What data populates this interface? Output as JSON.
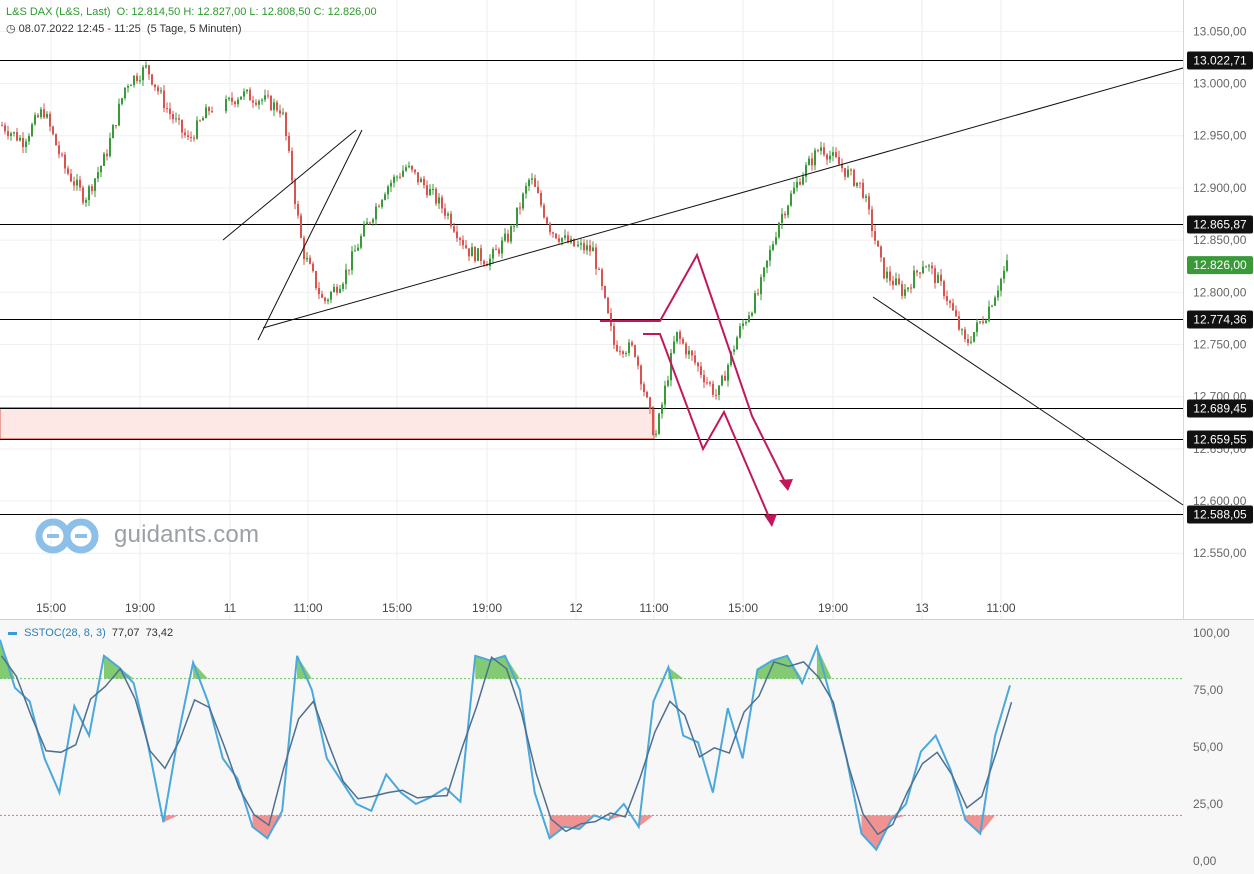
{
  "header": {
    "symbol": "L&S DAX (L&S, Last)",
    "ohlc": "O: 12.814,50   H: 12.827,00   L: 12.808,50   C: 12.826,00",
    "range": "08.07.2022 12:45 - 11:25",
    "interval": "(5 Tage, 5 Minuten)"
  },
  "logo": {
    "text": "guidants.com"
  },
  "colors": {
    "up": "#3a9a3a",
    "down": "#d9534f",
    "level_line": "#000000",
    "pattern": "#c2185b",
    "stoch": "#3a8fc5",
    "overbought_fill": "#6dc35b",
    "oversold_fill": "#f08080"
  },
  "chart_data": [
    {
      "type": "candlestick",
      "title": "L&S DAX (L&S, Last)",
      "ylim": [
        12510,
        13080
      ],
      "y_ticks": [
        "13.050,00",
        "13.000,00",
        "12.950,00",
        "12.900,00",
        "12.850,00",
        "12.800,00",
        "12.750,00",
        "12.700,00",
        "12.650,00",
        "12.600,00",
        "12.550,00"
      ],
      "x_tick_labels": [
        "15:00",
        "19:00",
        "11",
        "11:00",
        "15:00",
        "19:00",
        "12",
        "11:00",
        "15:00",
        "19:00",
        "13",
        "11:00"
      ],
      "last_price": {
        "value": 12826,
        "label": "12.826,00"
      },
      "horizontal_levels": [
        {
          "value": 13022.71,
          "label": "13.022,71"
        },
        {
          "value": 12865.87,
          "label": "12.865,87"
        },
        {
          "value": 12774.36,
          "label": "12.774,36"
        },
        {
          "value": 12689.45,
          "label": "12.689,45"
        },
        {
          "value": 12659.55,
          "label": "12.659,55"
        },
        {
          "value": 12588.05,
          "label": "12.588,05"
        }
      ],
      "zone": {
        "from": 12659.55,
        "to": 12689.45
      },
      "price_path": [
        [
          "15:00",
          12960
        ],
        [
          "15:00",
          12945
        ],
        [
          "15:00",
          12975
        ],
        [
          "15:00",
          12920
        ],
        [
          "15:00",
          12890
        ],
        [
          "19:00",
          12930
        ],
        [
          "19:00",
          13000
        ],
        [
          "19:00",
          13015
        ],
        [
          "19:00",
          12975
        ],
        [
          "19:00",
          12945
        ],
        [
          "19:00",
          12975
        ],
        [
          "19:00",
          12990
        ],
        [
          "19:00",
          12985
        ],
        [
          "19:00",
          12975
        ],
        [
          "11",
          12840
        ],
        [
          "11",
          12790
        ],
        [
          "11",
          12815
        ],
        [
          "11",
          12860
        ],
        [
          "11",
          12900
        ],
        [
          "11",
          12920
        ],
        [
          "15:00",
          12900
        ],
        [
          "15:00",
          12875
        ],
        [
          "15:00",
          12840
        ],
        [
          "15:00",
          12830
        ],
        [
          "15:00",
          12855
        ],
        [
          "19:00",
          12910
        ],
        [
          "19:00",
          12860
        ],
        [
          "19:00",
          12845
        ],
        [
          "19:00",
          12840
        ],
        [
          "12",
          12750
        ],
        [
          "12",
          12745
        ],
        [
          "12",
          12660
        ],
        [
          "12",
          12760
        ],
        [
          "12",
          12730
        ],
        [
          "12",
          12700
        ],
        [
          "15:00",
          12760
        ],
        [
          "15:00",
          12800
        ],
        [
          "15:00",
          12870
        ],
        [
          "15:00",
          12910
        ],
        [
          "19:00",
          12940
        ],
        [
          "19:00",
          12920
        ],
        [
          "19:00",
          12900
        ],
        [
          "19:00",
          12820
        ],
        [
          "19:00",
          12800
        ],
        [
          "13",
          12830
        ],
        [
          "13",
          12800
        ],
        [
          "13",
          12750
        ],
        [
          "13",
          12780
        ],
        [
          "13",
          12826
        ]
      ]
    },
    {
      "type": "line",
      "title": "SSTOC(28, 8, 3)",
      "values_label": [
        "77,07",
        "73,42"
      ],
      "ylim": [
        0,
        100
      ],
      "y_ticks": [
        "100,00",
        "75,00",
        "50,00",
        "25,00",
        "0,00"
      ],
      "overbought": 80,
      "oversold": 20,
      "series": [
        {
          "name": "SSTOC(28, 8, 3)",
          "values": [
            97,
            76,
            70,
            45,
            30,
            68,
            55,
            90,
            85,
            78,
            50,
            17,
            55,
            87,
            70,
            45,
            36,
            15,
            10,
            22,
            90,
            75,
            45,
            35,
            25,
            22,
            38,
            30,
            25,
            28,
            32,
            26,
            90,
            88,
            90,
            75,
            30,
            10,
            15,
            14,
            20,
            18,
            25,
            15,
            70,
            85,
            55,
            52,
            30,
            67,
            45,
            84,
            88,
            90,
            78,
            94,
            70,
            45,
            12,
            5,
            18,
            25,
            48,
            55,
            40,
            18,
            12,
            55,
            77
          ]
        }
      ]
    }
  ]
}
